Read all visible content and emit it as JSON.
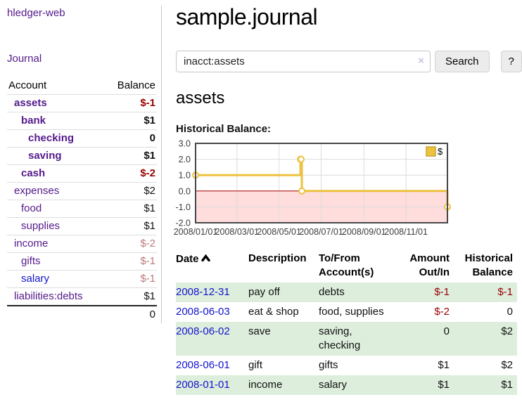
{
  "app": {
    "brand": "hledger-web"
  },
  "colors": {
    "link_purple": "#551a8b",
    "link_blue": "#1414cc",
    "negative_strong": "#990000",
    "negative_soft": "#c07a7a",
    "zebra_green": "#ddeedd",
    "chart_line": "#edc240",
    "chart_negative_region": "#ffdddd",
    "chart_zero_line": "#aa0000"
  },
  "sidebar": {
    "journal_link": "Journal",
    "header": {
      "account": "Account",
      "balance": "Balance"
    },
    "accounts": [
      {
        "name": "assets",
        "balance": "$-1",
        "balance_class": "neg"
      },
      {
        "name": "bank",
        "balance": "$1",
        "balance_class": ""
      },
      {
        "name": "checking",
        "balance": "0",
        "balance_class": ""
      },
      {
        "name": "saving",
        "balance": "$1",
        "balance_class": ""
      },
      {
        "name": "cash",
        "balance": "$-2",
        "balance_class": "neg"
      },
      {
        "name": "expenses",
        "balance": "$2",
        "balance_class": ""
      },
      {
        "name": "food",
        "balance": "$1",
        "balance_class": ""
      },
      {
        "name": "supplies",
        "balance": "$1",
        "balance_class": ""
      },
      {
        "name": "income",
        "balance": "$-2",
        "balance_class": "softneg"
      },
      {
        "name": "gifts",
        "balance": "$-1",
        "balance_class": "softneg"
      },
      {
        "name": "salary",
        "balance": "$-1",
        "balance_class": "softneg"
      },
      {
        "name": "liabilities:debts",
        "balance": "$1",
        "balance_class": ""
      }
    ],
    "total": "0"
  },
  "main": {
    "title": "sample.journal",
    "search": {
      "value": "inacct:assets",
      "clear_icon": "×",
      "button_label": "Search",
      "help_label": "?"
    },
    "account_heading": "assets",
    "chart_label": "Historical Balance:"
  },
  "chart_data": {
    "type": "line",
    "step": true,
    "title": "Historical Balance",
    "legend": "$",
    "legend_position": "top-right",
    "grid": true,
    "series": [
      {
        "name": "$",
        "color": "#edc240",
        "points": [
          [
            "2008-01-01",
            1
          ],
          [
            "2008-06-01",
            2
          ],
          [
            "2008-06-02",
            2
          ],
          [
            "2008-06-03",
            0
          ],
          [
            "2008-12-31",
            -1
          ]
        ]
      }
    ],
    "x_ticks": [
      "2008/01/01",
      "2008/03/01",
      "2008/05/01",
      "2008/07/01",
      "2008/09/01",
      "2008/11/01"
    ],
    "y_ticks": [
      3,
      2,
      1,
      0,
      -1,
      -2
    ],
    "xlim": [
      "2008-01-01",
      "2008-12-31"
    ],
    "ylim": [
      -2,
      3
    ],
    "negative_region_color": "#ffdddd",
    "zero_line_color": "#aa0000"
  },
  "register": {
    "columns": [
      "Date",
      "Description",
      "To/From Account(s)",
      "Amount Out/In",
      "Historical Balance"
    ],
    "rows": [
      {
        "date": "2008-12-31",
        "description": "pay off",
        "accounts": "debts",
        "amount": "$-1",
        "amount_class": "neg",
        "balance": "$-1",
        "balance_class": "neg"
      },
      {
        "date": "2008-06-03",
        "description": "eat & shop",
        "accounts": "food, supplies",
        "amount": "$-2",
        "amount_class": "neg",
        "balance": "0",
        "balance_class": ""
      },
      {
        "date": "2008-06-02",
        "description": "save",
        "accounts": "saving, checking",
        "amount": "0",
        "amount_class": "",
        "balance": "$2",
        "balance_class": ""
      },
      {
        "date": "2008-06-01",
        "description": "gift",
        "accounts": "gifts",
        "amount": "$1",
        "amount_class": "",
        "balance": "$2",
        "balance_class": ""
      },
      {
        "date": "2008-01-01",
        "description": "income",
        "accounts": "salary",
        "amount": "$1",
        "amount_class": "",
        "balance": "$1",
        "balance_class": ""
      }
    ]
  }
}
